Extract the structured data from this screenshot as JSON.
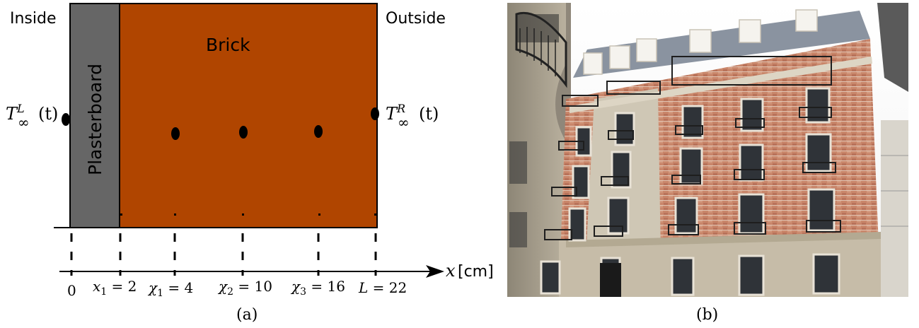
{
  "diagram": {
    "label_inside": "Inside",
    "label_outside": "Outside",
    "layer_plasterboard": "Plasterboard",
    "layer_brick": "Brick",
    "bc_left_T": "T",
    "bc_left_sup": "L",
    "bc_left_sub": "∞",
    "bc_left_arg": "(t)",
    "bc_right_T": "T",
    "bc_right_sup": "R",
    "bc_right_sub": "∞",
    "bc_right_arg": "(t)",
    "axis_var": "x",
    "axis_unit": "[cm]",
    "ticks": [
      {
        "sym": "",
        "sub": "",
        "eq": "0"
      },
      {
        "sym": "x",
        "sub": "1",
        "eq": " = 2"
      },
      {
        "sym": "χ",
        "sub": "1",
        "eq": " = 4"
      },
      {
        "sym": "χ",
        "sub": "2",
        "eq": " = 10"
      },
      {
        "sym": "χ",
        "sub": "3",
        "eq": " = 16"
      },
      {
        "sym": "L",
        "sub": "",
        "eq": " = 22"
      }
    ],
    "caption": "(a)",
    "colors": {
      "brick": "#b04500",
      "plasterboard": "#666666",
      "outline": "#000000"
    }
  },
  "photo": {
    "caption": "(b)",
    "subject": "building-facade-photo"
  }
}
